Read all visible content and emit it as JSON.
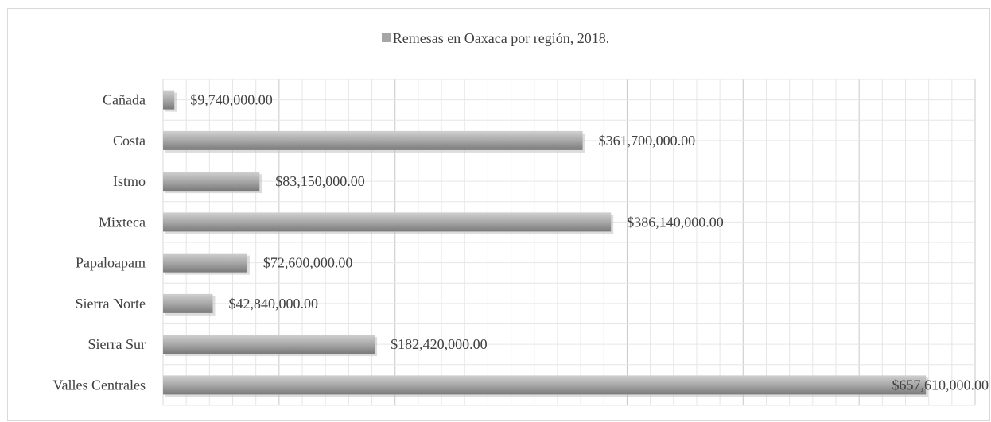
{
  "chart_data": {
    "type": "bar",
    "orientation": "horizontal",
    "title": "",
    "xlabel": "",
    "ylabel": "",
    "categories": [
      "Cañada",
      "Costa",
      "Istmo",
      "Mixteca",
      "Papaloapam",
      "Sierra Norte",
      "Sierra Sur",
      "Valles Centrales"
    ],
    "series": [
      {
        "name": "Remesas en Oaxaca por región, 2018.",
        "values": [
          9740000,
          361700000,
          83150000,
          386140000,
          72600000,
          42840000,
          182420000,
          657610000
        ],
        "labels": [
          "$9,740,000.00",
          "$361,700,000.00",
          "$83,150,000.00",
          "$386,140,000.00",
          "$72,600,000.00",
          "$42,840,000.00",
          "$182,420,000.00",
          "$657,610,000.00"
        ]
      }
    ],
    "xlim": [
      0,
      700000000
    ],
    "grid": true,
    "legend_position": "top",
    "colors": {
      "bar": "#a6a6a6",
      "grid": "#d9d9d9",
      "text": "#404040"
    }
  }
}
